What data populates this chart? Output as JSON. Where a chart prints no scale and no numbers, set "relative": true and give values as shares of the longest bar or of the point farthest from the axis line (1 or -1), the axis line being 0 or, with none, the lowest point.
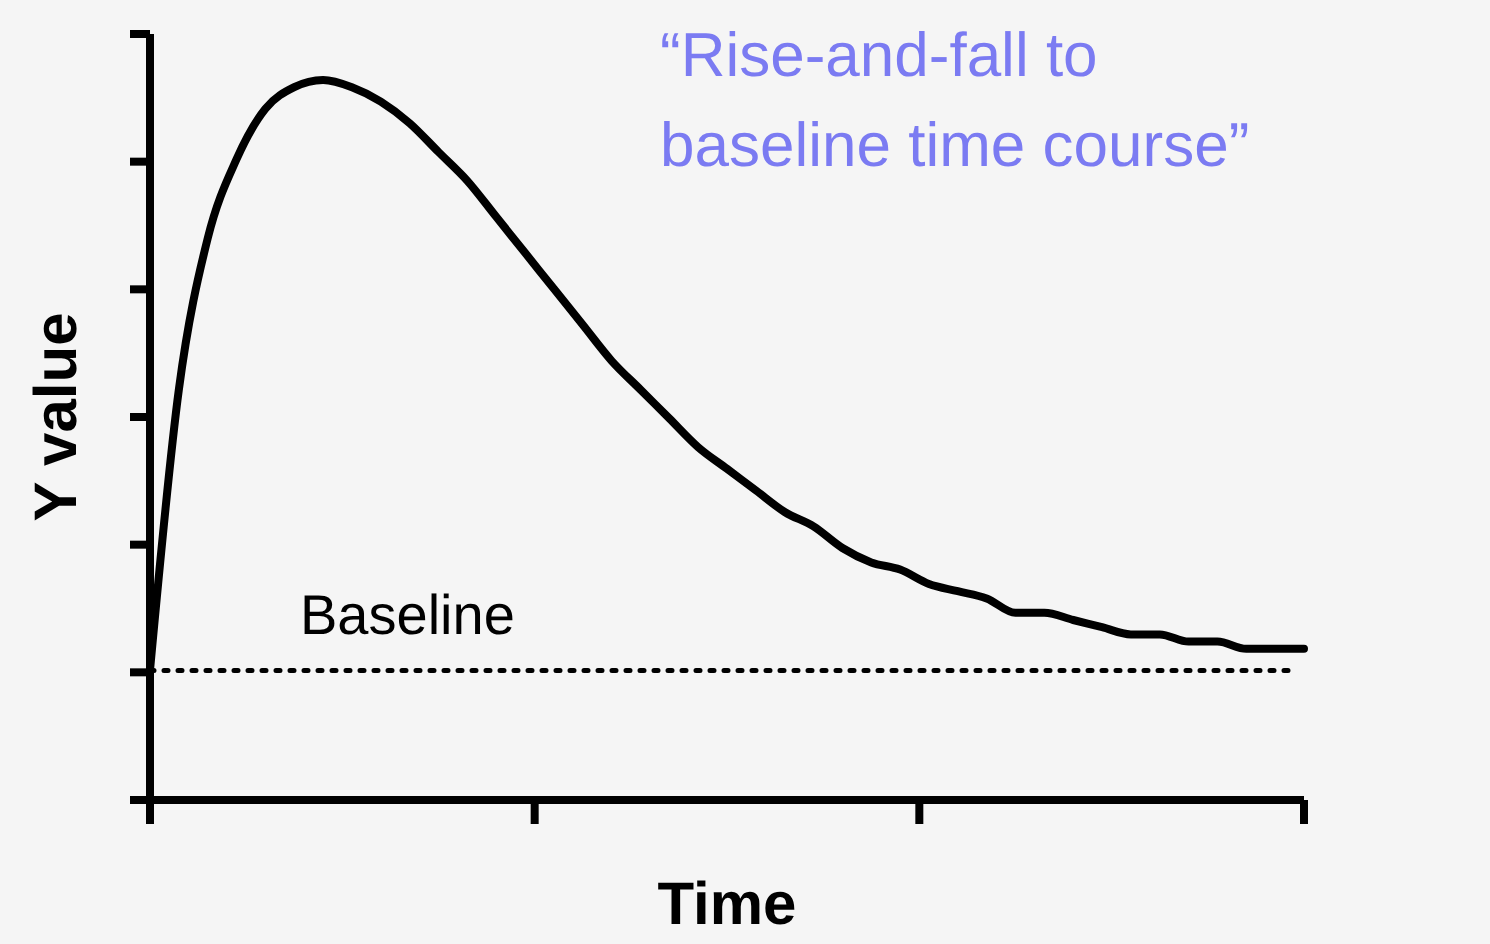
{
  "chart_data": {
    "type": "line",
    "relative": true,
    "xlabel": "Time",
    "ylabel": "Y value",
    "line_style": "solid",
    "grid": false,
    "categories": [
      null,
      null,
      null,
      null,
      null,
      null,
      null,
      null,
      null,
      null,
      null,
      null,
      null,
      null,
      null,
      null,
      null,
      null,
      null,
      null,
      null,
      null,
      null,
      null,
      null,
      null,
      null,
      null,
      null,
      null,
      null,
      null,
      null,
      null,
      null,
      null,
      null,
      null,
      null,
      null,
      null
    ],
    "series": [
      {
        "color": "#000000",
        "values": [
          0.18,
          0.57,
          0.78,
          0.89,
          0.96,
          0.99,
          1,
          0.99,
          0.97,
          0.94,
          0.9,
          0.86,
          0.81,
          0.76,
          0.71,
          0.66,
          0.61,
          0.57,
          0.53,
          0.49,
          0.46,
          0.43,
          0.4,
          0.38,
          0.35,
          0.33,
          0.32,
          0.3,
          0.29,
          0.28,
          0.26,
          0.26,
          0.25,
          0.24,
          0.23,
          0.23,
          0.22,
          0.22,
          0.21,
          0.21,
          0.21
        ]
      }
    ],
    "ref_lines": [
      {
        "axis": "y",
        "value": 0.18,
        "label": "Baseline",
        "color": "#000000",
        "line_style": "dotted"
      }
    ],
    "annotations": [
      "“Rise-and-fall to\nbaseline time course”"
    ]
  }
}
